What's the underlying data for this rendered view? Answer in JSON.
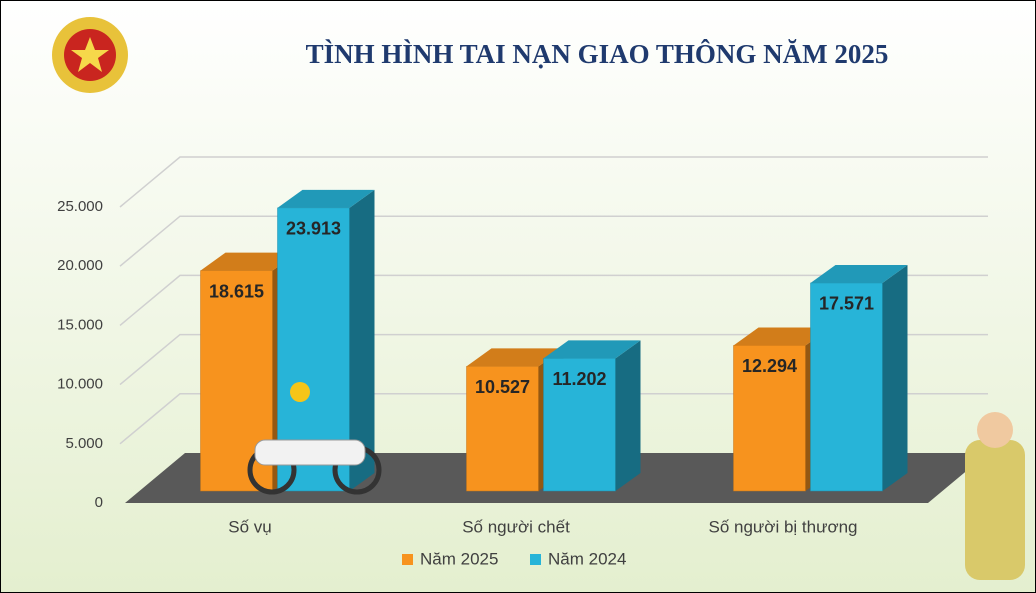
{
  "chart_data": {
    "type": "bar3d",
    "title": "TÌNH HÌNH TAI NẠN GIAO THÔNG NĂM 2025",
    "categories": [
      "Số vụ",
      "Số người chết",
      "Số người bị thương"
    ],
    "series": [
      {
        "name": "Năm 2025",
        "color": "#f7931e",
        "values": [
          18615,
          10527,
          12294
        ],
        "value_labels": [
          "18.615",
          "10.527",
          "12.294"
        ]
      },
      {
        "name": "Năm 2024",
        "color": "#27b4d8",
        "values": [
          23913,
          11202,
          17571
        ],
        "value_labels": [
          "23.913",
          "11.202",
          "17.571"
        ]
      }
    ],
    "ylim": [
      0,
      25000
    ],
    "yticks": [
      0,
      {
        "value": 5000,
        "label": "5.000"
      },
      {
        "value": 10000,
        "label": "10.000"
      },
      {
        "value": 15000,
        "label": "15.000"
      },
      {
        "value": 20000,
        "label": "20.000"
      },
      {
        "value": 25000,
        "label": "25.000"
      }
    ],
    "grid": true,
    "legend": "bottom"
  }
}
